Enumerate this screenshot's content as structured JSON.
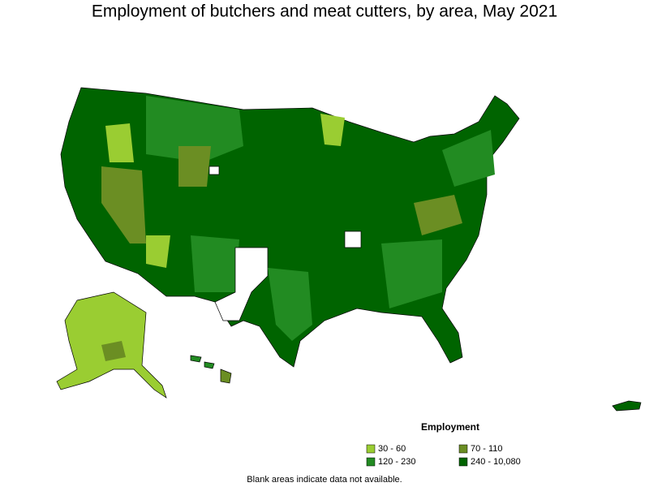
{
  "title": "Employment of butchers and meat cutters, by area, May 2021",
  "legend": {
    "title": "Employment",
    "items": [
      {
        "label": "30 - 60",
        "color": "#9acd32"
      },
      {
        "label": "70 - 110",
        "color": "#6b8e23"
      },
      {
        "label": "120 - 230",
        "color": "#228b22"
      },
      {
        "label": "240 - 10,080",
        "color": "#006400"
      }
    ]
  },
  "footnote": "Blank areas indicate data not available."
}
